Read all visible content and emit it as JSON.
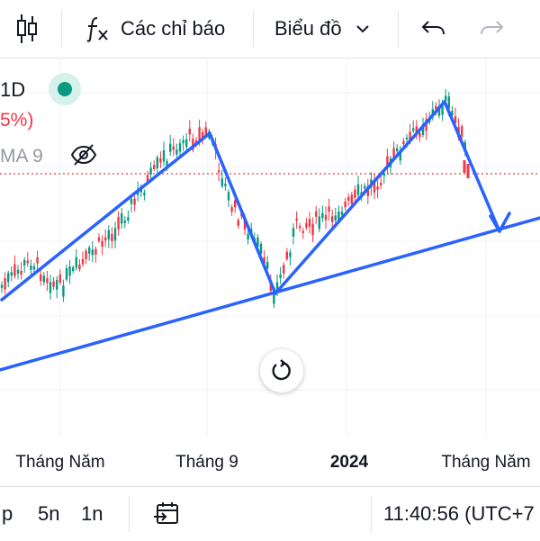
{
  "toolbar": {
    "indicators_label": "Các chỉ báo",
    "chart_type_label": "Biểu đồ",
    "icons": [
      "candles-icon",
      "fx-icon",
      "chevron-down-icon",
      "undo-icon",
      "redo-icon"
    ]
  },
  "legend": {
    "interval": "1D",
    "status_color": "#089981",
    "change": "5%)",
    "ma_label": "MA 9",
    "hidden_icon": "eye-off-icon"
  },
  "chart": {
    "time_labels": [
      "Tháng Năm",
      "Tháng 9",
      "2024",
      "Tháng Năm"
    ],
    "colors": {
      "up": "#089981",
      "down": "#f23645",
      "annotation": "#2962ff",
      "grid": "#f0f3fa",
      "price_line": "#f23645"
    }
  },
  "bottombar": {
    "ranges": [
      "p",
      "5n",
      "1n"
    ],
    "time": "11:40:56 (UTC+7"
  }
}
